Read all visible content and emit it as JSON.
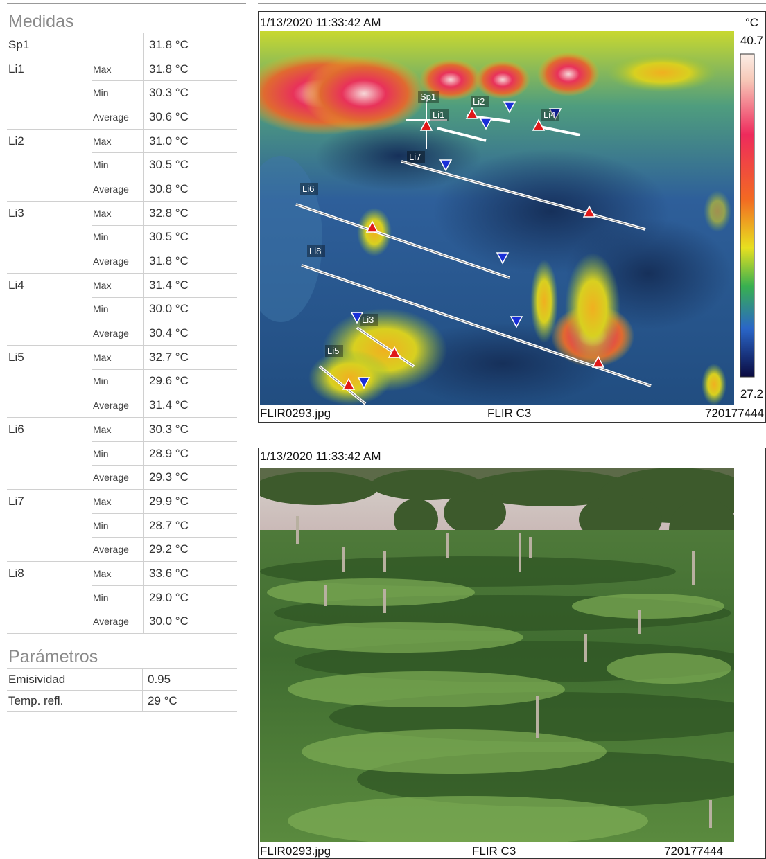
{
  "measurements": {
    "title": "Medidas",
    "rows": [
      {
        "label": "Sp1",
        "stat": "",
        "value": "31.8 °C"
      },
      {
        "label": "Li1",
        "stat": "Max",
        "value": "31.8 °C"
      },
      {
        "label": "",
        "stat": "Min",
        "value": "30.3 °C"
      },
      {
        "label": "",
        "stat": "Average",
        "value": "30.6 °C"
      },
      {
        "label": "Li2",
        "stat": "Max",
        "value": "31.0 °C"
      },
      {
        "label": "",
        "stat": "Min",
        "value": "30.5 °C"
      },
      {
        "label": "",
        "stat": "Average",
        "value": "30.8 °C"
      },
      {
        "label": "Li3",
        "stat": "Max",
        "value": "32.8 °C"
      },
      {
        "label": "",
        "stat": "Min",
        "value": "30.5 °C"
      },
      {
        "label": "",
        "stat": "Average",
        "value": "31.8 °C"
      },
      {
        "label": "Li4",
        "stat": "Max",
        "value": "31.4 °C"
      },
      {
        "label": "",
        "stat": "Min",
        "value": "30.0 °C"
      },
      {
        "label": "",
        "stat": "Average",
        "value": "30.4 °C"
      },
      {
        "label": "Li5",
        "stat": "Max",
        "value": "32.7 °C"
      },
      {
        "label": "",
        "stat": "Min",
        "value": "29.6 °C"
      },
      {
        "label": "",
        "stat": "Average",
        "value": "31.4 °C"
      },
      {
        "label": "Li6",
        "stat": "Max",
        "value": "30.3 °C"
      },
      {
        "label": "",
        "stat": "Min",
        "value": "28.9 °C"
      },
      {
        "label": "",
        "stat": "Average",
        "value": "29.3 °C"
      },
      {
        "label": "Li7",
        "stat": "Max",
        "value": "29.9 °C"
      },
      {
        "label": "",
        "stat": "Min",
        "value": "28.7 °C"
      },
      {
        "label": "",
        "stat": "Average",
        "value": "29.2 °C"
      },
      {
        "label": "Li8",
        "stat": "Max",
        "value": "33.6 °C"
      },
      {
        "label": "",
        "stat": "Min",
        "value": "29.0 °C"
      },
      {
        "label": "",
        "stat": "Average",
        "value": "30.0 °C"
      }
    ]
  },
  "parameters": {
    "title": "Parámetros",
    "rows": [
      {
        "label": "Emisividad",
        "value": "0.95"
      },
      {
        "label": "Temp. refl.",
        "value": "29 °C"
      }
    ]
  },
  "thermal_image": {
    "timestamp": "1/13/2020 11:33:42 AM",
    "unit": "°C",
    "scale_max": "40.7",
    "scale_min": "27.2",
    "filename": "FLIR0293.jpg",
    "camera": "FLIR C3",
    "serial": "720177444",
    "markers": {
      "sp1": "Sp1",
      "li1": "Li1",
      "li2": "Li2",
      "li3": "Li3",
      "li4": "Li4",
      "li5": "Li5",
      "li6": "Li6",
      "li7": "Li7",
      "li8": "Li8"
    }
  },
  "visual_image": {
    "timestamp": "1/13/2020 11:33:42 AM",
    "filename": "FLIR0293.jpg",
    "camera": "FLIR C3",
    "serial": "720177444"
  }
}
